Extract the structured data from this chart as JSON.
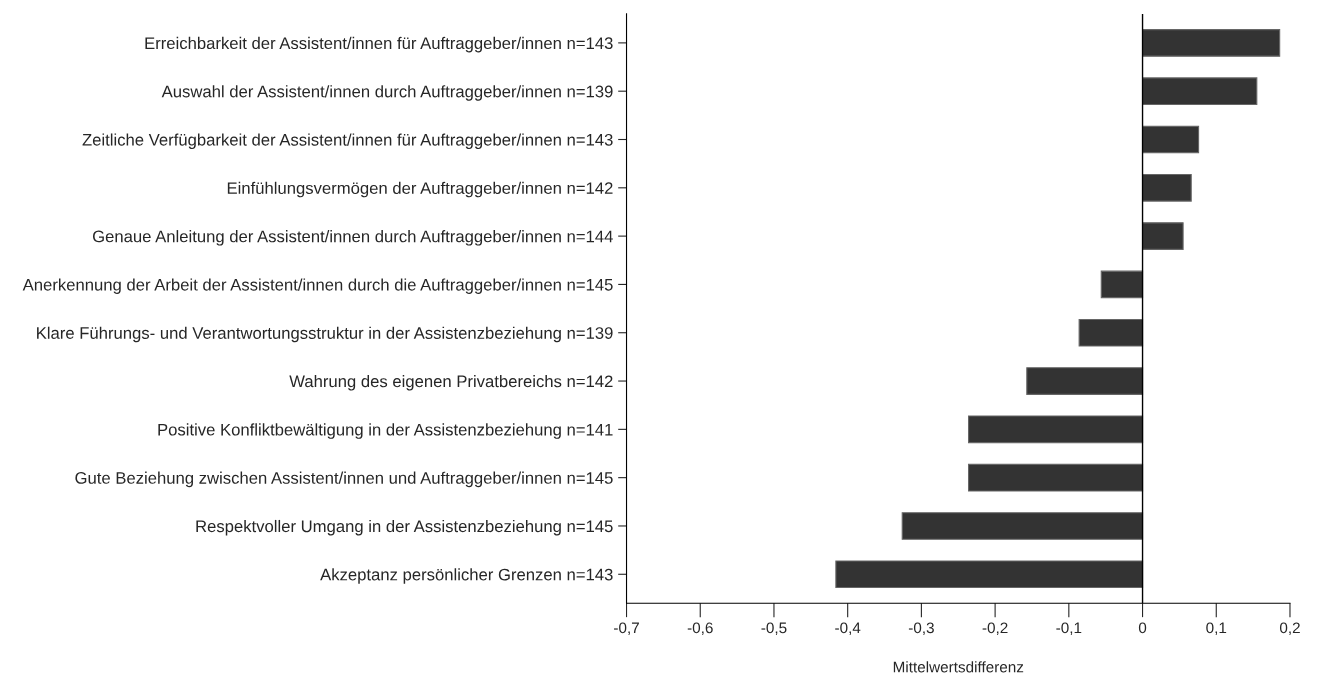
{
  "chart_data": {
    "type": "bar",
    "orientation": "horizontal",
    "categories": [
      "Erreichbarkeit der Assistent/innen für Auftraggeber/innen n=143",
      "Auswahl der Assistent/innen durch Auftraggeber/innen n=139",
      "Zeitliche Verfügbarkeit der Assistent/innen für Auftraggeber/innen n=143",
      "Einfühlungsvermögen der Auftraggeber/innen n=142",
      "Genaue Anleitung der Assistent/innen durch Auftraggeber/innen n=144",
      "Anerkennung der Arbeit der Assistent/innen durch die Auftraggeber/innen n=145",
      "Klare Führungs- und Verantwortungsstruktur in der Assistenzbeziehung n=139",
      "Wahrung des eigenen Privatbereichs n=142",
      "Positive Konfliktbewältigung in der Assistenzbeziehung n=141",
      "Gute Beziehung zwischen Assistent/innen und Auftraggeber/innen n=145",
      "Respektvoller Umgang in der Assistenzbeziehung n=145",
      "Akzeptanz persönlicher Grenzen n=143"
    ],
    "values": [
      0.186,
      0.155,
      0.076,
      0.066,
      0.055,
      -0.056,
      -0.086,
      -0.157,
      -0.236,
      -0.236,
      -0.326,
      -0.416
    ],
    "color": "#333333",
    "xlabel": "Mittelwertsdifferenz",
    "xlim": [
      -0.7,
      0.2
    ],
    "xticks": [
      {
        "value": -0.7,
        "label": "-0,7"
      },
      {
        "value": -0.6,
        "label": "-0,6"
      },
      {
        "value": -0.5,
        "label": "-0,5"
      },
      {
        "value": -0.4,
        "label": "-0,4"
      },
      {
        "value": -0.3,
        "label": "-0,3"
      },
      {
        "value": -0.2,
        "label": "-0,2"
      },
      {
        "value": -0.1,
        "label": "-0,1"
      },
      {
        "value": 0,
        "label": "0"
      },
      {
        "value": 0.1,
        "label": "0,1"
      },
      {
        "value": 0.2,
        "label": "0,2"
      }
    ],
    "ref_lines": [
      {
        "axis": "x",
        "value": 0,
        "color": "#000000"
      }
    ],
    "grid": false
  }
}
